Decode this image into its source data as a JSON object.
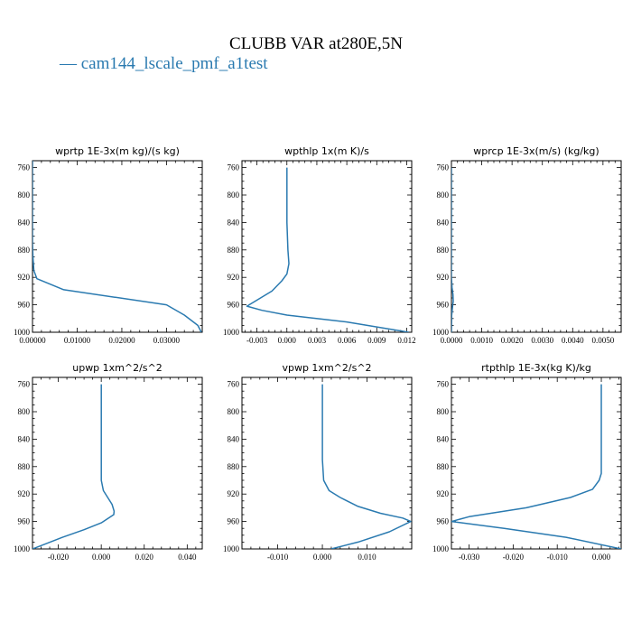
{
  "title": "CLUBB VAR at280E,5N",
  "legend": {
    "marker": "—",
    "label": "cam144_lscale_pmf_a1test",
    "color": "#2a7ab0"
  },
  "chart_data": [
    {
      "type": "line",
      "title": "wprtp  1E-3x(m kg)/(s kg)",
      "xlim": [
        0,
        0.038
      ],
      "ylim": [
        1000,
        750
      ],
      "xticks": [
        0,
        0.01,
        0.02,
        0.03
      ],
      "xtick_labels": [
        "0.00000",
        "0.01000",
        "0.02000",
        "0.03000"
      ],
      "yticks": [
        760,
        800,
        840,
        880,
        920,
        960,
        1000
      ],
      "series": [
        {
          "x": [
            0.0,
            0.0,
            0.0001,
            0.0003,
            0.001,
            0.007,
            0.03,
            0.034,
            0.037,
            0.0378
          ],
          "y": [
            750,
            870,
            890,
            910,
            922,
            938,
            960,
            975,
            990,
            1000
          ]
        }
      ]
    },
    {
      "type": "line",
      "title": "wpthlp  1x(m K)/s",
      "xlim": [
        -0.0045,
        0.0125
      ],
      "ylim": [
        1000,
        750
      ],
      "xticks": [
        -0.003,
        0,
        0.003,
        0.006,
        0.009,
        0.012
      ],
      "xtick_labels": [
        "-0.003",
        "0.000",
        "0.003",
        "0.006",
        "0.009",
        "0.012"
      ],
      "yticks": [
        760,
        800,
        840,
        880,
        920,
        960,
        1000
      ],
      "series": [
        {
          "x": [
            0.0,
            0.0,
            0.0001,
            0.0002,
            0.0,
            -0.0005,
            -0.0015,
            -0.004,
            -0.0025,
            0.0,
            0.006,
            0.0122
          ],
          "y": [
            760,
            840,
            880,
            900,
            915,
            925,
            940,
            962,
            968,
            975,
            985,
            1000
          ]
        }
      ]
    },
    {
      "type": "line",
      "title": "wprcp  1E-3x(m/s) (kg/kg)",
      "xlim": [
        0,
        0.0056
      ],
      "ylim": [
        1000,
        750
      ],
      "xticks": [
        0,
        0.001,
        0.002,
        0.003,
        0.004,
        0.005
      ],
      "xtick_labels": [
        "0.0000",
        "0.0010",
        "0.0020",
        "0.0030",
        "0.0040",
        "0.0050"
      ],
      "yticks": [
        760,
        800,
        840,
        880,
        920,
        960,
        1000
      ],
      "series": [
        {
          "x": [
            0.0,
            0.0,
            2e-05,
            5e-05,
            6e-05,
            4e-05,
            1e-05,
            0.0
          ],
          "y": [
            760,
            920,
            935,
            945,
            955,
            962,
            975,
            1000
          ]
        }
      ]
    },
    {
      "type": "line",
      "title": "upwp  1xm^2/s^2",
      "xlim": [
        -0.032,
        0.047
      ],
      "ylim": [
        1000,
        750
      ],
      "xticks": [
        -0.02,
        0,
        0.02,
        0.04
      ],
      "xtick_labels": [
        "-0.020",
        "0.000",
        "0.020",
        "0.040"
      ],
      "yticks": [
        760,
        800,
        840,
        880,
        920,
        960,
        1000
      ],
      "series": [
        {
          "x": [
            0.0,
            0.0,
            0.0,
            0.001,
            0.003,
            0.005,
            0.006,
            0.0058,
            0.0,
            -0.008,
            -0.018,
            -0.032
          ],
          "y": [
            760,
            880,
            900,
            915,
            925,
            935,
            945,
            950,
            962,
            972,
            983,
            1000
          ]
        }
      ]
    },
    {
      "type": "line",
      "title": "vpwp  1xm^2/s^2",
      "xlim": [
        -0.018,
        0.02
      ],
      "ylim": [
        1000,
        750
      ],
      "xticks": [
        -0.01,
        0,
        0.01
      ],
      "xtick_labels": [
        "-0.010",
        "0.000",
        "0.010"
      ],
      "yticks": [
        760,
        800,
        840,
        880,
        920,
        960,
        1000
      ],
      "series": [
        {
          "x": [
            0.0,
            0.0,
            0.0003,
            0.0015,
            0.004,
            0.008,
            0.013,
            0.018,
            0.0198,
            0.015,
            0.008,
            0.002
          ],
          "y": [
            760,
            870,
            900,
            915,
            925,
            938,
            948,
            955,
            960,
            975,
            990,
            1000
          ]
        }
      ]
    },
    {
      "type": "line",
      "title": "rtpthlp  1E-3x(kg K)/kg",
      "xlim": [
        -0.034,
        0.0045
      ],
      "ylim": [
        1000,
        750
      ],
      "xticks": [
        -0.03,
        -0.02,
        -0.01,
        0
      ],
      "xtick_labels": [
        "-0.030",
        "-0.020",
        "-0.010",
        "0.000"
      ],
      "yticks": [
        760,
        800,
        840,
        880,
        920,
        960,
        1000
      ],
      "series": [
        {
          "x": [
            0.0,
            0.0,
            0.0,
            -0.0005,
            -0.002,
            -0.007,
            -0.017,
            -0.03,
            -0.034,
            -0.022,
            -0.008,
            0.0045
          ],
          "y": [
            760,
            860,
            890,
            900,
            913,
            925,
            940,
            953,
            960,
            970,
            983,
            1000
          ]
        }
      ]
    }
  ]
}
